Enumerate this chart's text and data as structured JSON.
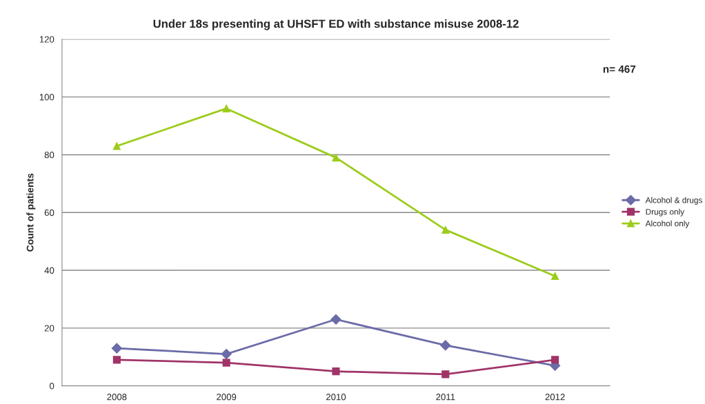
{
  "chart_data": {
    "type": "line",
    "title": "Under 18s presenting at UHSFT ED with substance misuse 2008-12",
    "ylabel": "Count of patients",
    "categories": [
      "2008",
      "2009",
      "2010",
      "2011",
      "2012"
    ],
    "series": [
      {
        "name": "Alcohol & drugs",
        "color": "#6b6ba8",
        "marker": "diamond",
        "values": [
          13,
          11,
          23,
          14,
          7
        ]
      },
      {
        "name": "Drugs only",
        "color": "#a03468",
        "marker": "square",
        "values": [
          9,
          8,
          5,
          4,
          9
        ]
      },
      {
        "name": "Alcohol only",
        "color": "#9ccc1c",
        "marker": "triangle",
        "values": [
          83,
          96,
          79,
          54,
          38
        ]
      }
    ],
    "ylim": [
      0,
      120
    ],
    "yticks": [
      0,
      20,
      40,
      60,
      80,
      100,
      120
    ],
    "grid": "y",
    "legend": "right",
    "line_style": "solid",
    "annotations": [
      "n= 467"
    ]
  }
}
